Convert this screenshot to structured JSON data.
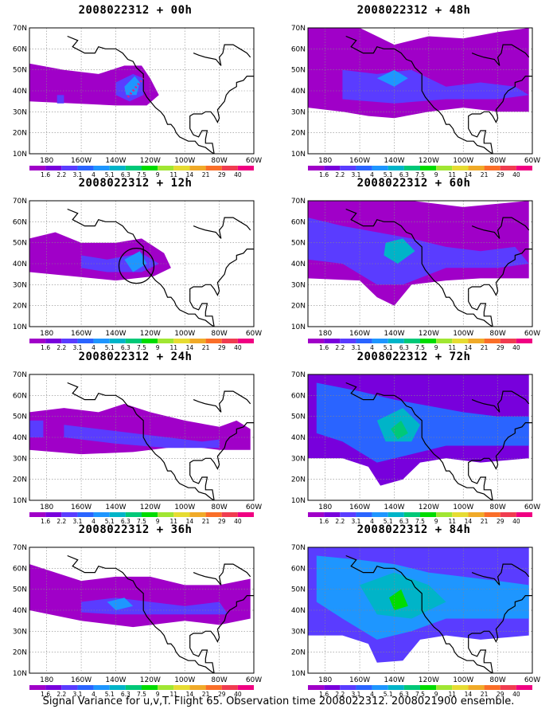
{
  "panels": [
    {
      "title": "2008022312 + 00h",
      "variant": 0
    },
    {
      "title": "2008022312 + 48h",
      "variant": 4
    },
    {
      "title": "2008022312 + 12h",
      "variant": 1
    },
    {
      "title": "2008022312 + 60h",
      "variant": 5
    },
    {
      "title": "2008022312 + 24h",
      "variant": 2
    },
    {
      "title": "2008022312 + 72h",
      "variant": 6
    },
    {
      "title": "2008022312 + 36h",
      "variant": 3
    },
    {
      "title": "2008022312 + 84h",
      "variant": 7
    }
  ],
  "lat_labels": [
    "70N",
    "60N",
    "50N",
    "40N",
    "30N",
    "20N",
    "10N"
  ],
  "lon_labels": [
    "180",
    "160W",
    "140W",
    "120W",
    "100W",
    "80W",
    "60W"
  ],
  "colorbar": {
    "labels": [
      "1.6",
      "2.2",
      "3.1",
      "4",
      "5.1",
      "6.3",
      "7.5",
      "9",
      "11",
      "14",
      "21",
      "29",
      "40"
    ],
    "colors": [
      "#a000c8",
      "#7800dc",
      "#5a3cff",
      "#2a64ff",
      "#1e96ff",
      "#00b4c8",
      "#00c878",
      "#00dc00",
      "#a0e632",
      "#e6dc32",
      "#f0aa28",
      "#fa6e28",
      "#f03c50",
      "#f00082"
    ]
  },
  "caption": "Signal Variance for u,v,T. Flight 65. Observation time 2008022312. 2008021900 ensemble."
}
